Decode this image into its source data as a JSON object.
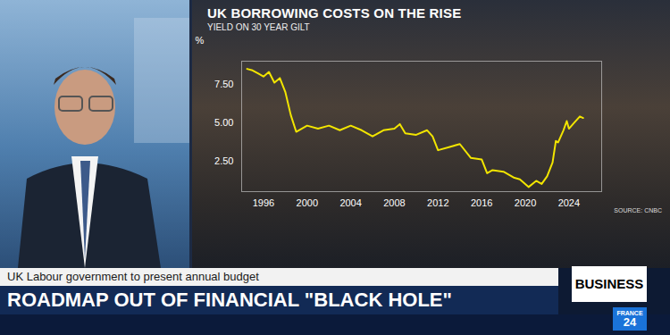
{
  "chart_data": {
    "type": "line",
    "title": "UK BORROWING COSTS ON THE RISE",
    "subtitle": "YIELD ON 30 YEAR GILT",
    "ylabel": "%",
    "source": "SOURCE: CNBC",
    "x": [
      1994.5,
      1995.0,
      1995.5,
      1996.0,
      1996.5,
      1997.0,
      1997.5,
      1998.0,
      1998.5,
      1999.0,
      1999.5,
      2000.0,
      2001.0,
      2002.0,
      2003.0,
      2004.0,
      2005.0,
      2006.0,
      2007.0,
      2008.0,
      2008.5,
      2009.0,
      2010.0,
      2011.0,
      2011.5,
      2012.0,
      2013.0,
      2014.0,
      2015.0,
      2016.0,
      2016.5,
      2017.0,
      2018.0,
      2019.0,
      2019.5,
      2020.3,
      2021.0,
      2021.5,
      2022.0,
      2022.5,
      2022.8,
      2023.0,
      2023.5,
      2023.8,
      2024.0,
      2024.5,
      2025.0,
      2025.3
    ],
    "values": [
      8.5,
      8.4,
      8.2,
      8.0,
      8.3,
      7.6,
      7.9,
      7.0,
      5.5,
      4.4,
      4.6,
      4.8,
      4.6,
      4.8,
      4.5,
      4.8,
      4.5,
      4.1,
      4.5,
      4.6,
      4.9,
      4.3,
      4.2,
      4.5,
      4.1,
      3.2,
      3.4,
      3.6,
      2.7,
      2.6,
      1.7,
      1.9,
      1.8,
      1.4,
      1.3,
      0.8,
      1.2,
      1.0,
      1.5,
      2.4,
      3.8,
      3.7,
      4.5,
      5.1,
      4.6,
      5.0,
      5.4,
      5.3
    ],
    "color": "#f2e500",
    "xlim": [
      1994,
      2027
    ],
    "xticks": [
      1996,
      2000,
      2004,
      2008,
      2012,
      2016,
      2020,
      2024
    ],
    "ylim": [
      0.5,
      9
    ],
    "yticks": [
      {
        "value": 2.5,
        "label": "2.50"
      },
      {
        "value": 5,
        "label": "5.00"
      },
      {
        "value": 7.5,
        "label": "7.50"
      }
    ],
    "grid": false
  },
  "banner": {
    "subheadline": "UK Labour government to present annual budget",
    "headline": "ROADMAP OUT OF FINANCIAL \"BLACK HOLE\"",
    "section": "BUSINESS"
  },
  "logo": [
    "FRANCE",
    "24"
  ]
}
